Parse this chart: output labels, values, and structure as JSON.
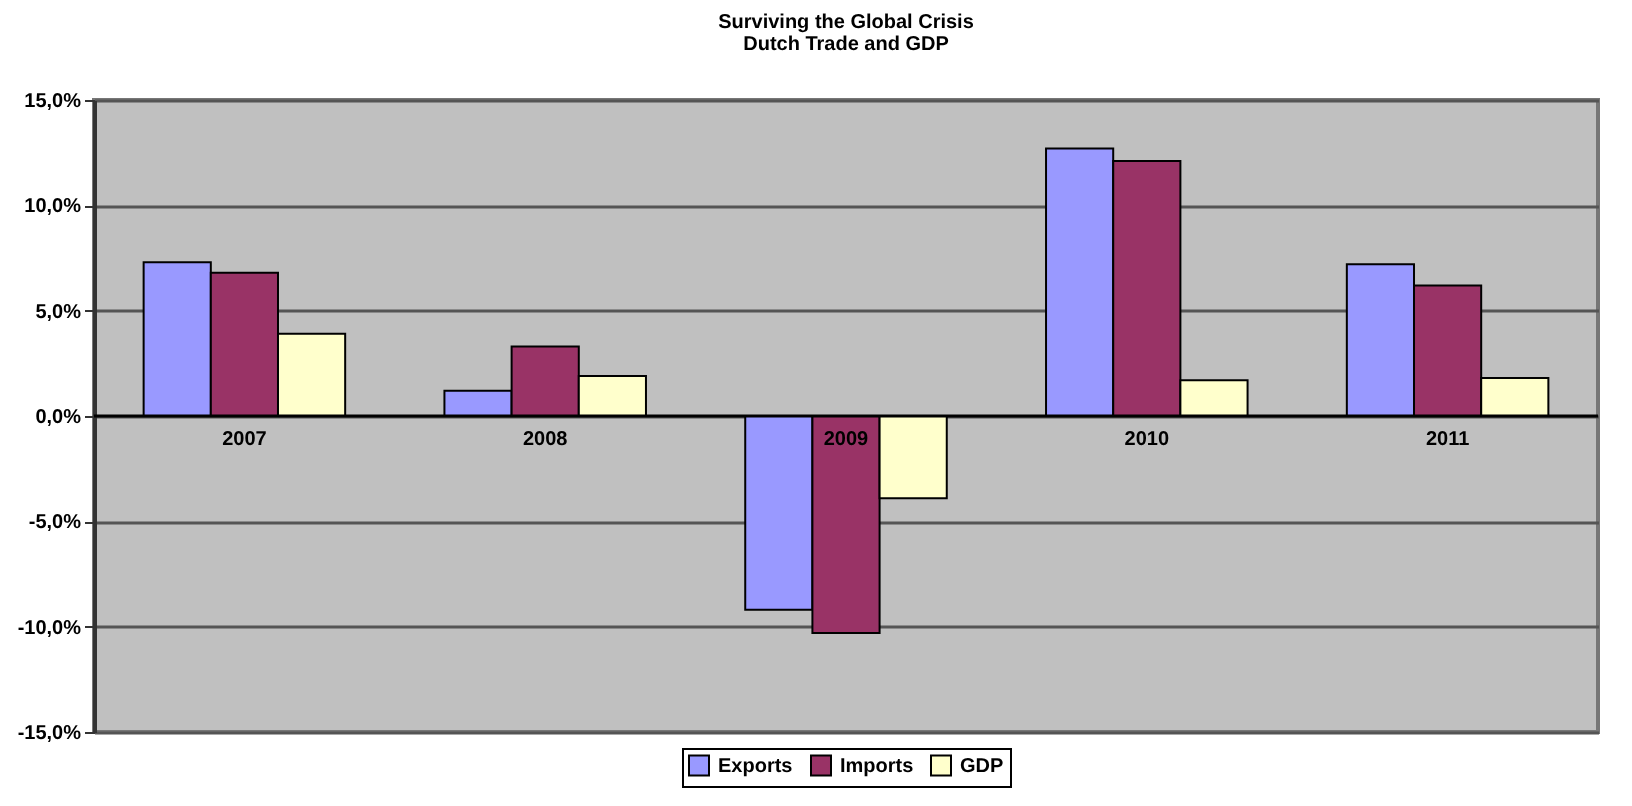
{
  "chart_data": {
    "type": "bar",
    "title": "Surviving the Global Crisis",
    "subtitle": "Dutch Trade and GDP",
    "categories": [
      "2007",
      "2008",
      "2009",
      "2010",
      "2011"
    ],
    "series": [
      {
        "name": "Exports",
        "color": "#9999ff",
        "values": [
          7.3,
          1.2,
          -9.2,
          12.7,
          7.2
        ]
      },
      {
        "name": "Imports",
        "color": "#993366",
        "values": [
          6.8,
          3.3,
          -10.3,
          12.1,
          6.2
        ]
      },
      {
        "name": "GDP",
        "color": "#ffffcc",
        "values": [
          3.9,
          1.9,
          -3.9,
          1.7,
          1.8
        ]
      }
    ],
    "ylim": [
      -15,
      15
    ],
    "yticks": [
      {
        "value": -15,
        "label": "-15,0%"
      },
      {
        "value": -10,
        "label": "-10,0%"
      },
      {
        "value": -5,
        "label": "-5,0%"
      },
      {
        "value": 0,
        "label": "0,0%"
      },
      {
        "value": 5,
        "label": "5,0%"
      },
      {
        "value": 10,
        "label": "10,0%"
      },
      {
        "value": 15,
        "label": "15,0%"
      }
    ],
    "grid": "y",
    "legend": "bottom"
  }
}
